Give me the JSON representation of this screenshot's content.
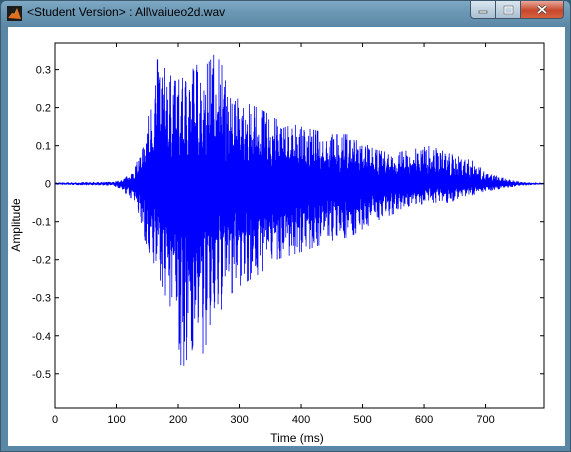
{
  "window": {
    "title": "<Student Version> : All\\vaiueo2d.wav",
    "icon": "matlab-icon",
    "buttons": {
      "minimize": "minimize-icon",
      "maximize": "maximize-icon",
      "close": "close-icon"
    }
  },
  "chart_data": {
    "type": "line",
    "title": "",
    "xlabel": "Time (ms)",
    "ylabel": "Amplitude",
    "xlim": [
      0,
      795
    ],
    "ylim": [
      -0.59,
      0.37
    ],
    "xticks": [
      0,
      100,
      200,
      300,
      400,
      500,
      600,
      700
    ],
    "yticks": [
      0.3,
      0.2,
      0.1,
      0,
      -0.1,
      -0.2,
      -0.3,
      -0.4,
      -0.5
    ],
    "ytick_labels": [
      "0.3",
      "0.2",
      "0.1",
      "0",
      "-0.1",
      "-0.2",
      "-0.3",
      "-0.4",
      "-0.5"
    ],
    "grid": false,
    "color": "#0000ff",
    "envelope": {
      "time_ms": [
        0,
        95,
        110,
        125,
        140,
        155,
        165,
        180,
        195,
        210,
        225,
        240,
        255,
        265,
        280,
        300,
        330,
        360,
        400,
        450,
        480,
        500,
        520,
        550,
        580,
        610,
        640,
        660,
        680,
        700,
        720,
        740,
        760,
        795
      ],
      "max": [
        0.003,
        0.005,
        0.01,
        0.03,
        0.08,
        0.2,
        0.33,
        0.3,
        0.27,
        0.28,
        0.32,
        0.3,
        0.33,
        0.36,
        0.25,
        0.22,
        0.2,
        0.17,
        0.15,
        0.13,
        0.13,
        0.11,
        0.09,
        0.08,
        0.09,
        0.1,
        0.08,
        0.07,
        0.06,
        0.03,
        0.02,
        0.01,
        0.005,
        0.002
      ],
      "min": [
        -0.003,
        -0.005,
        -0.02,
        -0.04,
        -0.1,
        -0.25,
        -0.22,
        -0.3,
        -0.35,
        -0.55,
        -0.42,
        -0.45,
        -0.38,
        -0.35,
        -0.3,
        -0.27,
        -0.24,
        -0.2,
        -0.18,
        -0.15,
        -0.14,
        -0.12,
        -0.1,
        -0.08,
        -0.06,
        -0.05,
        -0.05,
        -0.04,
        -0.03,
        -0.02,
        -0.015,
        -0.01,
        -0.005,
        -0.002
      ]
    }
  }
}
